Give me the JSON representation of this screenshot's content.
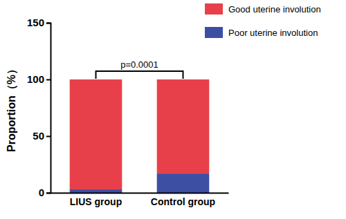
{
  "chart_data": {
    "type": "bar",
    "stacked": true,
    "y_label": "Proportion（%）",
    "categories": [
      "LIUS group",
      "Control group"
    ],
    "series": [
      {
        "name": "Good uterine involution",
        "color": "#e8404a",
        "values": [
          97,
          83
        ]
      },
      {
        "name": "Poor uterine involution",
        "color": "#3d4fa3",
        "values": [
          3,
          17
        ]
      }
    ],
    "ylim": [
      0,
      150
    ],
    "yticks": [
      0,
      50,
      100,
      150
    ],
    "legend": "top-right",
    "annotation": {
      "text": "p=0.0001"
    }
  }
}
